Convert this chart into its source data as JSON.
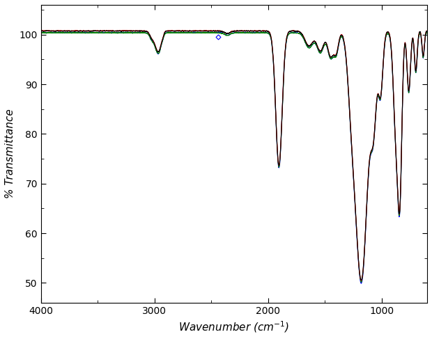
{
  "xlabel": "Wavenumber (cm$^{-1}$)",
  "ylabel": "% Transmittance",
  "xlim": [
    4000,
    600
  ],
  "ylim": [
    46,
    106
  ],
  "yticks": [
    50,
    60,
    70,
    80,
    90,
    100
  ],
  "xticks": [
    4000,
    3000,
    2000,
    1000
  ],
  "colors": [
    "black",
    "red",
    "green",
    "blue"
  ],
  "linewidth": 0.8,
  "bg_color": "white",
  "marker_wn": 2440,
  "marker_t": 99.5
}
